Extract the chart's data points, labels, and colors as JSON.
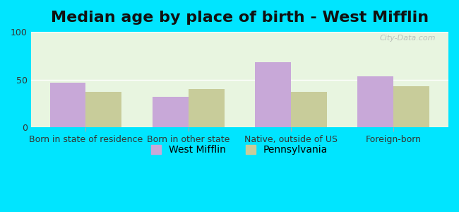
{
  "title": "Median age by place of birth - West Mifflin",
  "categories": [
    "Born in state of residence",
    "Born in other state",
    "Native, outside of US",
    "Foreign-born"
  ],
  "west_mifflin": [
    47,
    32,
    68,
    53
  ],
  "pennsylvania": [
    37,
    40,
    37,
    43
  ],
  "bar_color_wm": "#c8a8d8",
  "bar_color_pa": "#c8cc9a",
  "background_outer": "#00e5ff",
  "background_inner": "#e8f5e0",
  "ylim": [
    0,
    100
  ],
  "yticks": [
    0,
    50,
    100
  ],
  "legend_labels": [
    "West Mifflin",
    "Pennsylvania"
  ],
  "title_fontsize": 16,
  "tick_fontsize": 9,
  "legend_fontsize": 10,
  "bar_width": 0.35,
  "watermark": "City-Data.com"
}
